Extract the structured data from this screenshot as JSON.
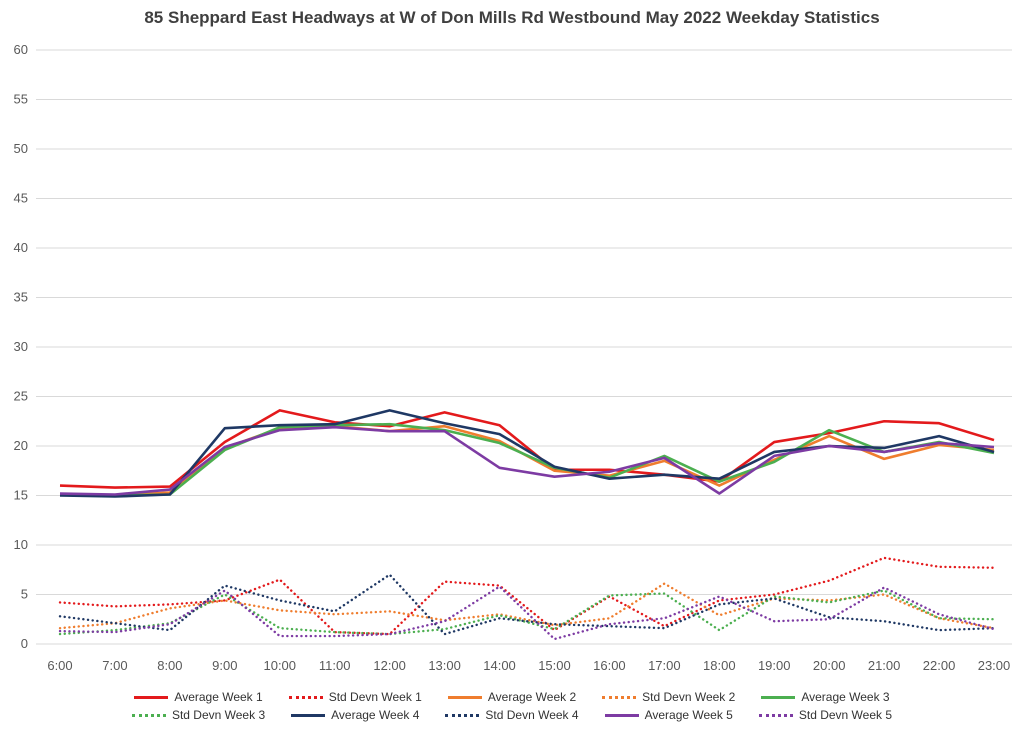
{
  "chart_data": {
    "type": "line",
    "title": "85 Sheppard East Headways at W of Don Mills Rd Westbound May 2022 Weekday Statistics",
    "xlabel": "",
    "ylabel": "",
    "ylim": [
      0,
      60
    ],
    "ytick_step": 5,
    "grid": true,
    "legend_position": "bottom",
    "categories": [
      "6:00",
      "7:00",
      "8:00",
      "9:00",
      "10:00",
      "11:00",
      "12:00",
      "13:00",
      "14:00",
      "15:00",
      "16:00",
      "17:00",
      "18:00",
      "19:00",
      "20:00",
      "21:00",
      "22:00",
      "23:00"
    ],
    "series": [
      {
        "name": "Average Week 1",
        "color": "#e31a1c",
        "style": "solid",
        "values": [
          16.0,
          15.8,
          15.9,
          20.4,
          23.6,
          22.4,
          22.0,
          23.4,
          22.1,
          17.6,
          17.6,
          17.1,
          16.4,
          20.4,
          21.3,
          22.5,
          22.3,
          20.6
        ]
      },
      {
        "name": "Std Devn Week 1",
        "color": "#e31a1c",
        "style": "dotted",
        "values": [
          4.2,
          3.8,
          4.0,
          4.4,
          6.5,
          1.2,
          1.0,
          6.3,
          5.9,
          1.4,
          4.8,
          1.8,
          4.4,
          5.0,
          6.4,
          8.7,
          7.8,
          7.7
        ]
      },
      {
        "name": "Average Week 2",
        "color": "#ef7d2e",
        "style": "solid",
        "values": [
          15.1,
          15.0,
          15.3,
          19.8,
          21.8,
          22.0,
          21.5,
          22.0,
          20.5,
          17.5,
          17.0,
          18.5,
          16.0,
          18.6,
          21.0,
          18.7,
          20.1,
          19.6
        ]
      },
      {
        "name": "Std Devn Week 2",
        "color": "#ef7d2e",
        "style": "dotted",
        "values": [
          1.6,
          2.1,
          3.6,
          4.4,
          3.4,
          3.0,
          3.3,
          2.4,
          3.0,
          1.9,
          2.6,
          6.1,
          2.9,
          4.6,
          4.4,
          5.0,
          2.6,
          1.6
        ]
      },
      {
        "name": "Average Week 3",
        "color": "#4caf50",
        "style": "solid",
        "values": [
          15.1,
          15.0,
          15.1,
          19.6,
          21.9,
          22.1,
          22.2,
          21.6,
          20.3,
          17.8,
          16.8,
          19.0,
          16.4,
          18.4,
          21.6,
          19.4,
          20.4,
          19.3
        ]
      },
      {
        "name": "Std Devn Week 3",
        "color": "#4caf50",
        "style": "dotted",
        "values": [
          1.0,
          1.4,
          2.1,
          5.0,
          1.6,
          1.2,
          1.0,
          1.5,
          2.9,
          1.5,
          4.9,
          5.1,
          1.4,
          4.8,
          4.2,
          5.4,
          2.6,
          2.5
        ]
      },
      {
        "name": "Average Week 4",
        "color": "#1f3864",
        "style": "solid",
        "values": [
          15.0,
          14.9,
          15.1,
          21.8,
          22.1,
          22.2,
          23.6,
          22.3,
          21.2,
          17.9,
          16.7,
          17.1,
          16.7,
          19.4,
          20.0,
          19.8,
          21.0,
          19.4
        ]
      },
      {
        "name": "Std Devn Week 4",
        "color": "#1f3864",
        "style": "dotted",
        "values": [
          2.8,
          2.1,
          1.4,
          5.9,
          4.4,
          3.3,
          7.0,
          1.0,
          2.6,
          2.0,
          1.8,
          1.6,
          4.0,
          4.6,
          2.7,
          2.3,
          1.4,
          1.6
        ]
      },
      {
        "name": "Average Week 5",
        "color": "#7d3ba3",
        "style": "solid",
        "values": [
          15.2,
          15.1,
          15.6,
          19.9,
          21.6,
          21.9,
          21.5,
          21.5,
          17.8,
          16.9,
          17.4,
          18.8,
          15.2,
          19.0,
          20.0,
          19.4,
          20.3,
          19.9
        ]
      },
      {
        "name": "Std Devn Week 5",
        "color": "#7d3ba3",
        "style": "dotted",
        "values": [
          1.3,
          1.2,
          2.0,
          5.4,
          0.8,
          0.8,
          1.0,
          2.3,
          5.8,
          0.5,
          2.0,
          2.6,
          4.8,
          2.3,
          2.5,
          5.7,
          3.0,
          1.5
        ]
      }
    ],
    "axis_color": "#595959",
    "grid_color": "#d9d9d9"
  }
}
